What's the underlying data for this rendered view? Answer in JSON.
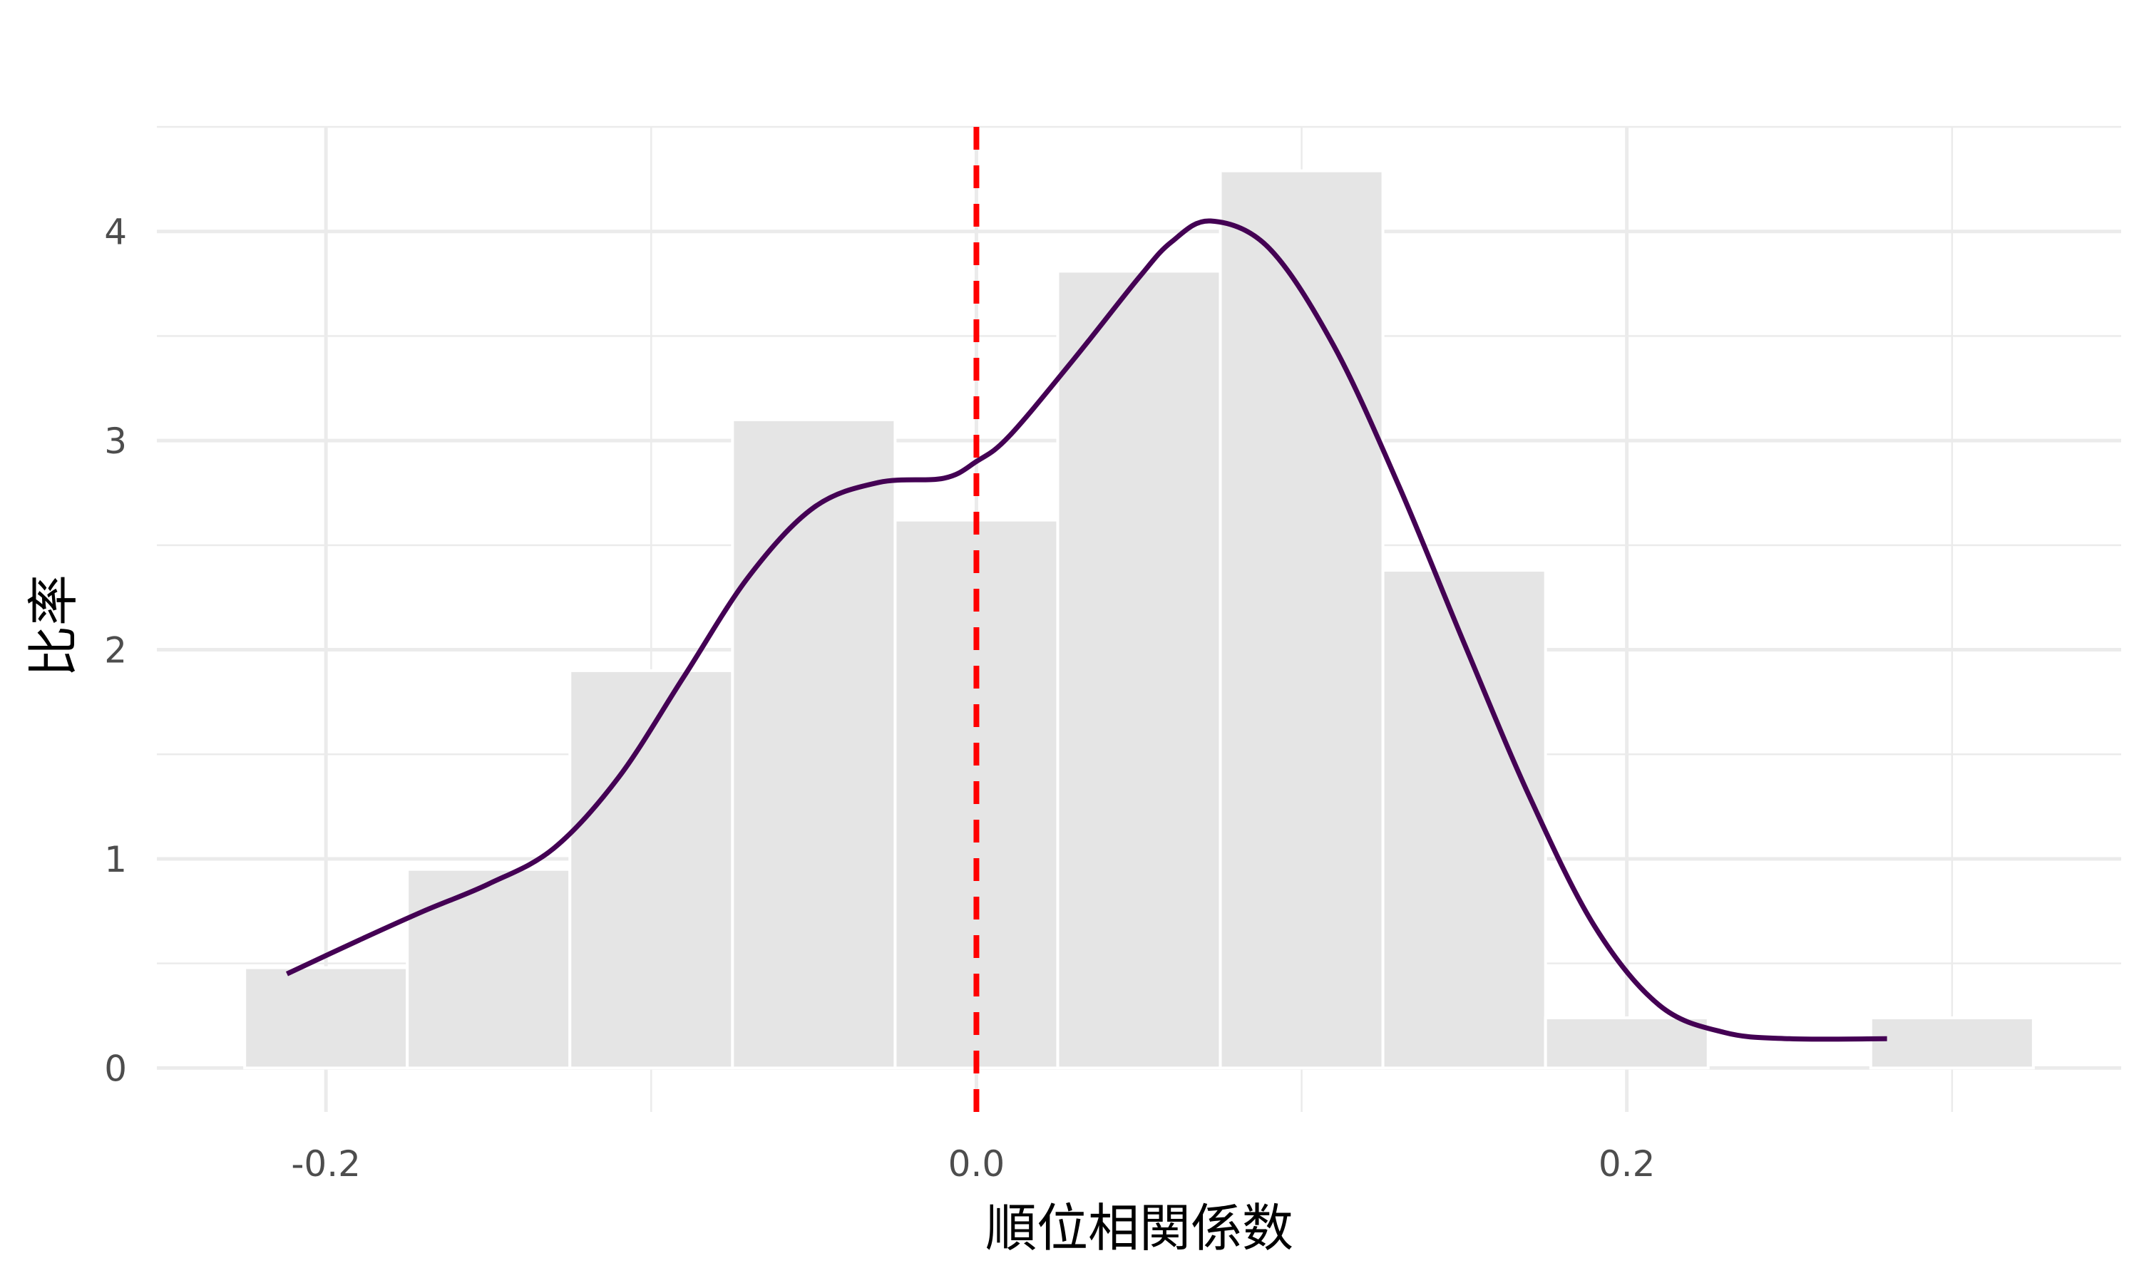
{
  "chart_data": {
    "type": "bar",
    "subtype": "histogram-with-density",
    "title": "",
    "xlabel": "順位相関係数",
    "ylabel": "比率",
    "xlim": [
      -0.252,
      0.352
    ],
    "ylim": [
      -0.21,
      4.5
    ],
    "x_ticks": [
      {
        "value": -0.2,
        "label": "-0.2"
      },
      {
        "value": 0.0,
        "label": "0.0"
      },
      {
        "value": 0.2,
        "label": "0.2"
      }
    ],
    "y_ticks": [
      {
        "value": 0,
        "label": "0"
      },
      {
        "value": 1,
        "label": "1"
      },
      {
        "value": 2,
        "label": "2"
      },
      {
        "value": 3,
        "label": "3"
      },
      {
        "value": 4,
        "label": "4"
      }
    ],
    "grid": true,
    "bin_width": 0.05,
    "bins": [
      {
        "start": -0.225,
        "end": -0.175,
        "value": 0.48
      },
      {
        "start": -0.175,
        "end": -0.125,
        "value": 0.95
      },
      {
        "start": -0.125,
        "end": -0.075,
        "value": 1.9
      },
      {
        "start": -0.075,
        "end": -0.025,
        "value": 3.1
      },
      {
        "start": -0.025,
        "end": 0.025,
        "value": 2.62
      },
      {
        "start": 0.025,
        "end": 0.075,
        "value": 3.81
      },
      {
        "start": 0.075,
        "end": 0.125,
        "value": 4.29
      },
      {
        "start": 0.125,
        "end": 0.175,
        "value": 2.38
      },
      {
        "start": 0.175,
        "end": 0.225,
        "value": 0.24
      },
      {
        "start": 0.225,
        "end": 0.275,
        "value": 0.0
      },
      {
        "start": 0.275,
        "end": 0.325,
        "value": 0.24
      }
    ],
    "density": {
      "color": "#440154",
      "points": [
        [
          -0.212,
          0.45
        ],
        [
          -0.19,
          0.61
        ],
        [
          -0.17,
          0.75
        ],
        [
          -0.15,
          0.88
        ],
        [
          -0.13,
          1.05
        ],
        [
          -0.11,
          1.39
        ],
        [
          -0.09,
          1.87
        ],
        [
          -0.07,
          2.35
        ],
        [
          -0.05,
          2.68
        ],
        [
          -0.03,
          2.8
        ],
        [
          -0.01,
          2.82
        ],
        [
          0.0,
          2.9
        ],
        [
          0.01,
          3.02
        ],
        [
          0.03,
          3.39
        ],
        [
          0.05,
          3.78
        ],
        [
          0.06,
          3.95
        ],
        [
          0.072,
          4.05
        ],
        [
          0.09,
          3.92
        ],
        [
          0.11,
          3.45
        ],
        [
          0.13,
          2.78
        ],
        [
          0.15,
          2.03
        ],
        [
          0.17,
          1.3
        ],
        [
          0.19,
          0.68
        ],
        [
          0.21,
          0.3
        ],
        [
          0.23,
          0.17
        ],
        [
          0.25,
          0.14
        ],
        [
          0.28,
          0.14
        ]
      ]
    },
    "reference_line": {
      "x": 0.0,
      "color": "#ff0000",
      "style": "dashed"
    }
  }
}
